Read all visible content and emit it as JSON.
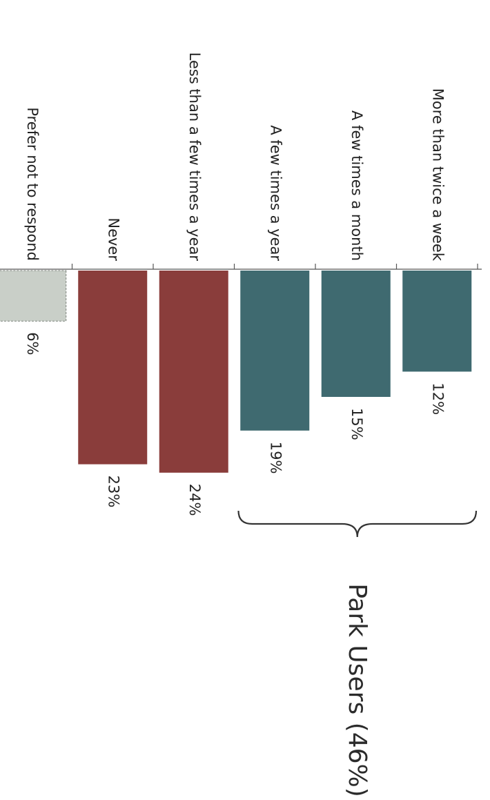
{
  "chart_data": {
    "type": "bar",
    "orientation": "horizontal",
    "categories": [
      "More than twice a week",
      "A few times a month",
      "A few times a year",
      "Less than a few times a year",
      "Never",
      "Prefer not to respond"
    ],
    "values": [
      12,
      15,
      19,
      24,
      23,
      6
    ],
    "value_labels": [
      "12%",
      "15%",
      "19%",
      "24%",
      "23%",
      "6%"
    ],
    "bar_colors": [
      "#3f6a70",
      "#3f6a70",
      "#3f6a70",
      "#8a3d3b",
      "#8a3d3b",
      "#c9cfc8"
    ],
    "xlim": [
      0,
      25
    ],
    "grid": false,
    "legend": "none",
    "group_annotation": {
      "label": "Park Users (46%)",
      "categories": [
        "More than twice a week",
        "A few times a month",
        "A few times a year"
      ]
    }
  },
  "colors": {
    "park_user": "#3f6a70",
    "non_user": "#8a3d3b",
    "no_response": "#c9cfc8",
    "axis": "#555555",
    "brace": "#333333"
  }
}
